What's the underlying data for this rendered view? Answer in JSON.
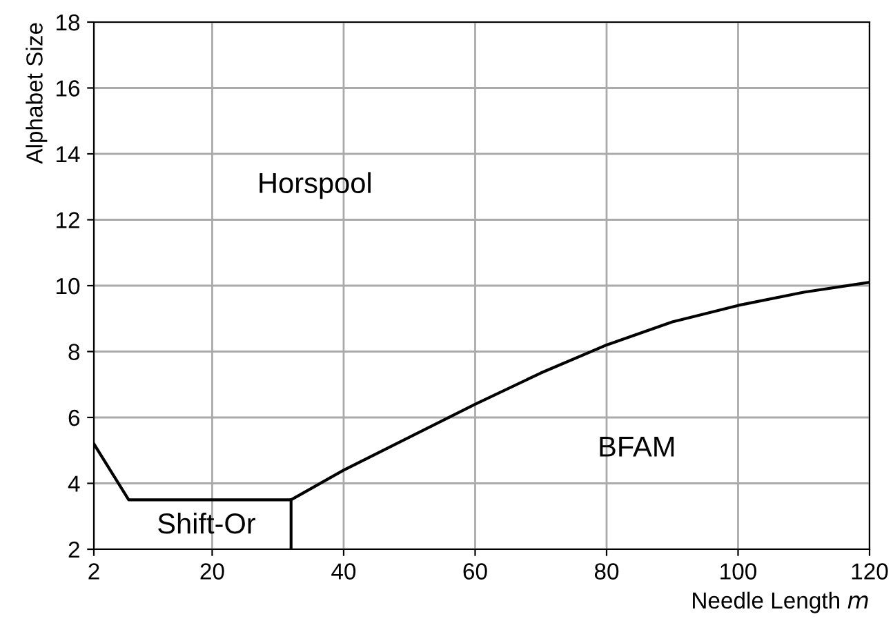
{
  "chart_data": {
    "type": "line",
    "xlabel": "Needle Length m",
    "ylabel": "Alphabet Size",
    "series": [
      {
        "color": "#000000",
        "x": [
          2,
          7.3,
          32,
          40,
          50,
          60,
          70,
          80,
          90,
          100,
          110,
          120
        ],
        "values": [
          5.2,
          3.5,
          3.5,
          4.4,
          5.4,
          6.4,
          7.35,
          8.2,
          8.9,
          9.4,
          9.8,
          10.1
        ]
      },
      {
        "color": "#000000",
        "x": [
          32,
          32
        ],
        "values": [
          3.5,
          2
        ]
      }
    ],
    "annotations": [
      "Horspool",
      "Shift-Or",
      "BFAM"
    ],
    "xlim": [
      2,
      120
    ],
    "xticks": [
      2,
      20,
      40,
      60,
      80,
      100,
      120
    ],
    "ylim": [
      2,
      18
    ],
    "yticks": [
      2,
      4,
      6,
      8,
      10,
      12,
      14,
      16,
      18
    ],
    "grid": true,
    "legend": false,
    "marker": "none",
    "line_style": "solid"
  }
}
